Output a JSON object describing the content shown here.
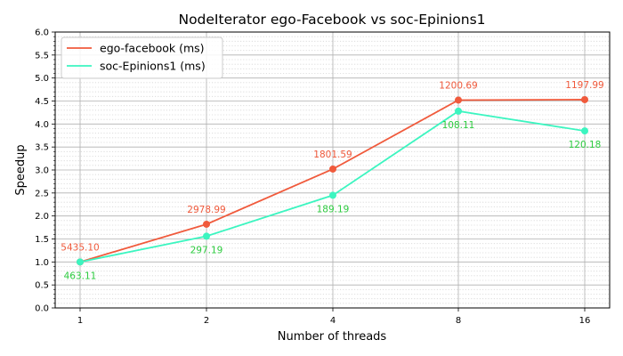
{
  "chart_data": {
    "type": "line",
    "title": "NodeIterator ego-Facebook vs soc-Epinions1",
    "xlabel": "Number of threads",
    "ylabel": "Speedup",
    "categories": [
      "1",
      "2",
      "4",
      "8",
      "16"
    ],
    "ylim": [
      0,
      6
    ],
    "yticks": [
      "0.0",
      "0.5",
      "1.0",
      "1.5",
      "2.0",
      "2.5",
      "3.0",
      "3.5",
      "4.0",
      "4.5",
      "5.0",
      "5.5",
      "6.0"
    ],
    "grid": true,
    "legend_position": "top-left",
    "series": [
      {
        "name": "ego-facebook (ms)",
        "color": "#f05a3c",
        "values": [
          1.0,
          1.82,
          3.02,
          4.52,
          4.53
        ],
        "labels": [
          "5435.10",
          "2978.99",
          "1801.59",
          "1200.69",
          "1197.99"
        ],
        "label_position": "above"
      },
      {
        "name": "soc-Epinions1 (ms)",
        "color": "#3cf5c0",
        "label_color": "#2ecc40",
        "values": [
          1.0,
          1.56,
          2.45,
          4.28,
          3.85
        ],
        "labels": [
          "463.11",
          "297.19",
          "189.19",
          "108.11",
          "120.18"
        ],
        "label_position": "below"
      }
    ]
  }
}
